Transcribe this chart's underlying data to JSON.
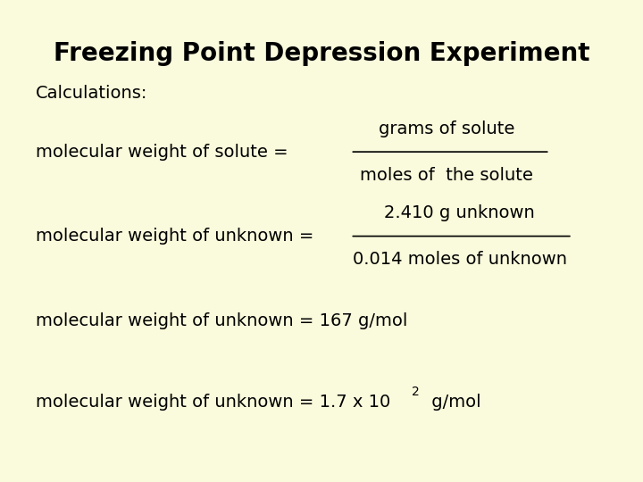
{
  "title": "Freezing Point Depression Experiment",
  "background_color": "#fafadc",
  "text_color": "#000000",
  "title_fontsize": 20,
  "title_font": "sans-serif",
  "body_fontsize": 14,
  "body_font": "sans-serif",
  "calculations_label": "Calculations:",
  "eq1_lhs": "molecular weight of solute =",
  "eq1_numerator": "grams of solute",
  "eq1_denominator": "moles of  the solute",
  "eq2_lhs": "molecular weight of unknown =",
  "eq2_numerator": "2.410 g unknown",
  "eq2_denominator": "0.014 moles of unknown",
  "eq3": "molecular weight of unknown = 167 g/mol",
  "eq4_lhs": "molecular weight of unknown = 1.7 x 10",
  "eq4_exp": "2",
  "eq4_rhs": " g/mol"
}
